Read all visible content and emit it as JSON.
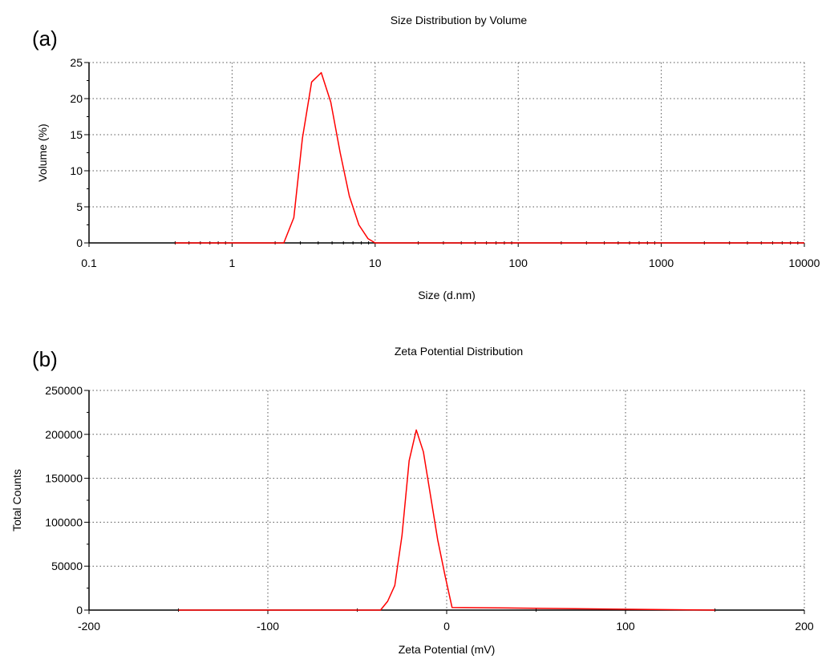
{
  "colors": {
    "series": "#ff0000",
    "axis": "#000000",
    "grid": "#555555"
  },
  "chart_data": [
    {
      "type": "line",
      "panel": "(a)",
      "title": "Size Distribution by Volume",
      "xlabel": "Size (d.nm)",
      "ylabel": "Volume (%)",
      "xscale": "log",
      "xlim": [
        0.1,
        10000
      ],
      "ylim": [
        0,
        25
      ],
      "xticks": [
        0.1,
        1,
        10,
        100,
        1000,
        10000
      ],
      "xtick_labels": [
        "0.1",
        "1",
        "10",
        "100",
        "1000",
        "10000"
      ],
      "yticks": [
        0,
        5,
        10,
        15,
        20,
        25
      ],
      "ytick_labels": [
        "0",
        "5",
        "10",
        "15",
        "20",
        "25"
      ],
      "grid": true,
      "legend": false,
      "series": [
        {
          "x": [
            0.4,
            2.3,
            2.7,
            3.1,
            3.6,
            4.2,
            4.9,
            5.7,
            6.6,
            7.7,
            8.9,
            10.0,
            10000
          ],
          "y": [
            0,
            0,
            3.5,
            14.5,
            22.3,
            23.6,
            19.5,
            12.5,
            6.5,
            2.5,
            0.6,
            0,
            0
          ]
        }
      ]
    },
    {
      "type": "line",
      "panel": "(b)",
      "title": "Zeta Potential Distribution",
      "xlabel": "Zeta Potential (mV)",
      "ylabel": "Total Counts",
      "xlim": [
        -200,
        200
      ],
      "ylim": [
        0,
        250000
      ],
      "xticks": [
        -200,
        -100,
        0,
        100,
        200
      ],
      "xtick_labels": [
        "-200",
        "-100",
        "0",
        "100",
        "200"
      ],
      "yticks": [
        0,
        50000,
        100000,
        150000,
        200000,
        250000
      ],
      "ytick_labels": [
        "0",
        "50000",
        "100000",
        "150000",
        "200000",
        "250000"
      ],
      "grid": true,
      "legend": false,
      "series": [
        {
          "x": [
            -150,
            -37,
            -33,
            -29,
            -25,
            -21,
            -17,
            -13,
            -9,
            -5,
            -1,
            3,
            150
          ],
          "y": [
            0,
            0,
            10000,
            28000,
            85000,
            170000,
            205000,
            180000,
            130000,
            80000,
            40000,
            3000,
            0
          ]
        }
      ]
    }
  ]
}
